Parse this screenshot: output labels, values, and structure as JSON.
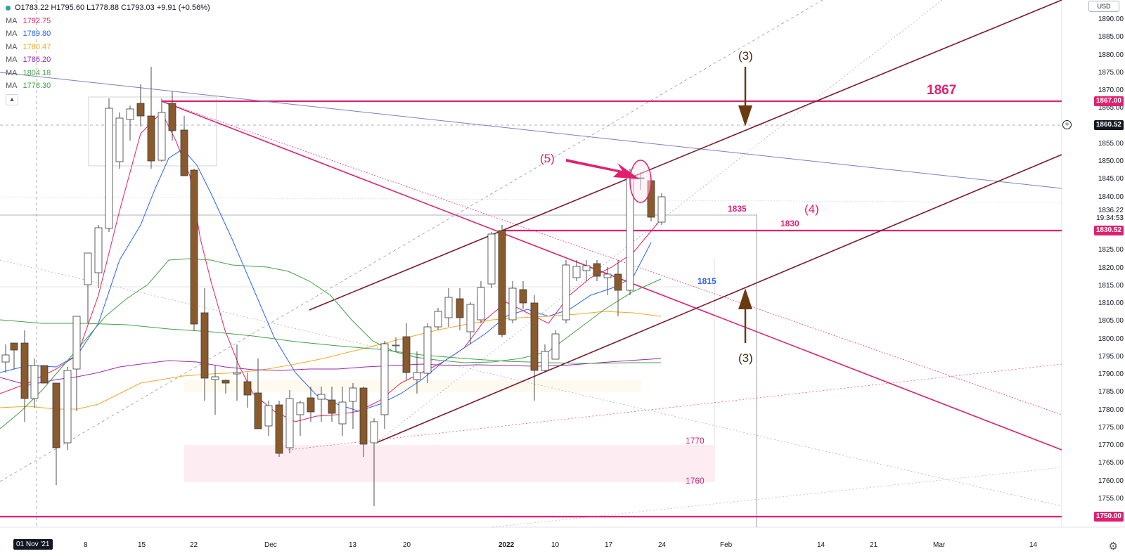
{
  "legend": {
    "ohlc": "O1783.22  H1795.60  L1778.88  C1793.03  +9.91 (+0.56%)",
    "ma": [
      {
        "label": "MA",
        "value": "1792.75",
        "color": "#e91e63"
      },
      {
        "label": "MA",
        "value": "1789.80",
        "color": "#2962ff"
      },
      {
        "label": "MA",
        "value": "1780.47",
        "color": "#f5a623"
      },
      {
        "label": "MA",
        "value": "1786.20",
        "color": "#9c27b0"
      },
      {
        "label": "MA",
        "value": "1804.18",
        "color": "#43a047"
      },
      {
        "label": "MA",
        "value": "1778.30",
        "color": "#43a047"
      }
    ],
    "collapse_icon": "chevron-up-icon"
  },
  "currency": "USD",
  "price_axis": {
    "ticks": [
      "1890.00",
      "1885.00",
      "1880.00",
      "1875.00",
      "1870.00",
      "1865.00",
      "1855.00",
      "1850.00",
      "1845.00",
      "1840.00",
      "1836.22",
      "1825.00",
      "1820.00",
      "1815.00",
      "1810.00",
      "1805.00",
      "1800.00",
      "1795.00",
      "1790.00",
      "1785.00",
      "1780.00",
      "1775.00",
      "1770.00",
      "1765.00",
      "1760.00",
      "1755.00"
    ],
    "tags": {
      "t1867": "1867.00",
      "crosshair": "1860.52",
      "t1830": "1830.52",
      "t1750": "1750.00",
      "countdown": "19:34:53"
    }
  },
  "time_axis": {
    "current": "01 Nov '21",
    "labels": [
      "8",
      "15",
      "22",
      "Dec",
      "13",
      "20",
      "2022",
      "10",
      "17",
      "24",
      "Feb",
      "14",
      "21",
      "Mar",
      "14"
    ]
  },
  "annotations": {
    "a1867": "1867",
    "wave3_top": "(3)",
    "wave3_bottom": "(3)",
    "wave5": "(5)",
    "wave4": "(4)",
    "l1835": "1835",
    "l1830": "1830",
    "l1815": "1815",
    "l1770": "1770",
    "l1760": "1760"
  },
  "colors": {
    "up": "#ffffff",
    "down": "#8b5a2b",
    "magenta": "#e0206f",
    "maroon": "#7b1b2a",
    "brown_arrow": "#6b3a10",
    "blue_label": "#2962ff"
  },
  "icons": {
    "settings": "gear-icon",
    "crosshair": "plus-circle-icon"
  }
}
